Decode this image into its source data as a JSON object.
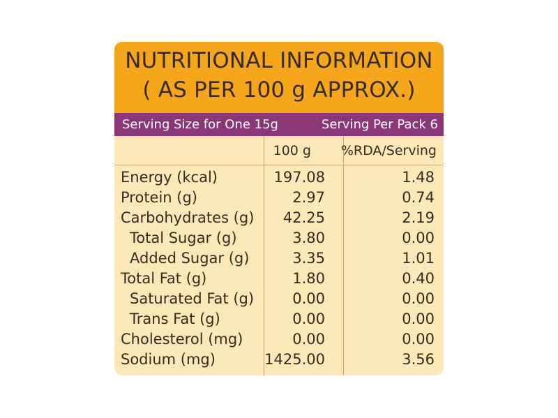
{
  "header": {
    "title_line1": "NUTRITIONAL INFORMATION",
    "title_line2": "( AS PER 100 g APPROX.)"
  },
  "serving": {
    "size_label": "Serving Size for One 15g",
    "per_pack_label": "Serving Per Pack 6"
  },
  "columns": {
    "per100": "100 g",
    "rda": "%RDA/Serving"
  },
  "rows": [
    {
      "name": "Energy (kcal)",
      "per100": "197.08",
      "rda": "1.48"
    },
    {
      "name": "Protein (g)",
      "per100": "2.97",
      "rda": "0.74"
    },
    {
      "name": "Carbohydrates (g)",
      "per100": "42.25",
      "rda": "2.19"
    },
    {
      "name": "Total Sugar (g)",
      "per100": "3.80",
      "rda": "0.00"
    },
    {
      "name": "Added Sugar (g)",
      "per100": "3.35",
      "rda": "1.01"
    },
    {
      "name": "Total Fat (g)",
      "per100": "1.80",
      "rda": "0.40"
    },
    {
      "name": "Saturated Fat (g)",
      "per100": "0.00",
      "rda": "0.00"
    },
    {
      "name": "Trans Fat (g)",
      "per100": "0.00",
      "rda": "0.00"
    },
    {
      "name": "Cholesterol (mg)",
      "per100": "0.00",
      "rda": "0.00"
    },
    {
      "name": "Sodium (mg)",
      "per100": "1425.00",
      "rda": "3.56"
    }
  ],
  "colors": {
    "header_bg": "#f6a61a",
    "band_bg": "#8a3677",
    "table_bg": "#fde8b9",
    "text": "#3a2a1c"
  }
}
